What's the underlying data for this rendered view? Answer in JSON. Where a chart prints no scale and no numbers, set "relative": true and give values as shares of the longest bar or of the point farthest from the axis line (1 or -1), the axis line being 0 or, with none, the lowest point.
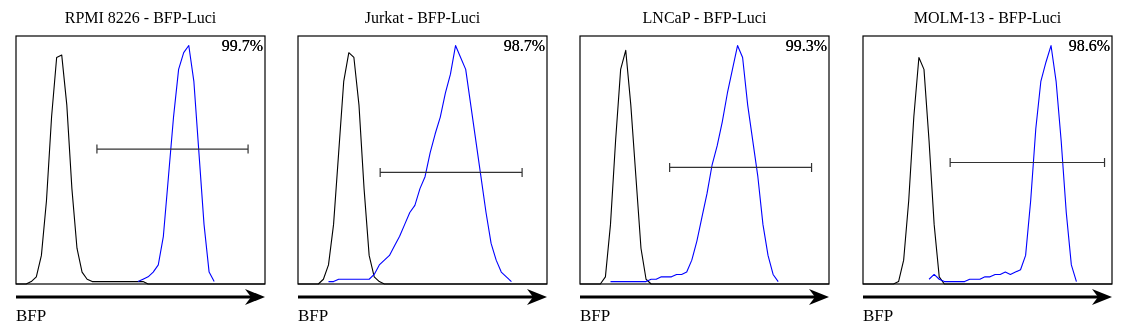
{
  "chart_data": [
    {
      "type": "line",
      "relative": true,
      "title": "RPMI 8226 - BFP-Luci",
      "xlabel": "BFP",
      "annotations": [
        "99.7%"
      ],
      "categories": [
        null,
        null,
        null,
        null,
        null,
        null,
        null,
        null,
        null,
        null,
        null,
        null,
        null,
        null,
        null,
        null,
        null,
        null,
        null,
        null,
        null,
        null,
        null,
        null,
        null,
        null,
        null,
        null,
        null,
        null,
        null,
        null,
        null,
        null,
        null,
        null,
        null,
        null,
        null,
        null,
        null,
        null,
        null,
        null,
        null,
        null,
        null,
        null,
        null,
        null
      ],
      "series": [
        {
          "color": "#000000",
          "values": [
            0,
            0,
            0,
            0.01,
            0.03,
            0.12,
            0.35,
            0.7,
            0.95,
            0.96,
            0.75,
            0.4,
            0.15,
            0.05,
            0.02,
            0.01,
            0.01,
            0.01,
            0.01,
            0.01,
            0.01,
            0.01,
            0.01,
            0.01,
            0.01,
            0.01,
            0,
            0,
            0,
            0,
            0,
            0,
            0,
            0,
            0,
            0,
            0,
            0,
            0,
            0,
            0,
            0,
            0,
            0,
            0,
            0,
            0,
            0,
            0,
            0
          ]
        },
        {
          "color": "#0000ff",
          "values": [
            null,
            null,
            null,
            null,
            null,
            null,
            null,
            null,
            null,
            null,
            null,
            null,
            null,
            null,
            null,
            null,
            null,
            null,
            null,
            null,
            null,
            null,
            null,
            null,
            0.01,
            0.02,
            0.03,
            0.05,
            0.08,
            0.2,
            0.45,
            0.7,
            0.9,
            0.97,
            1,
            0.85,
            0.55,
            0.25,
            0.05,
            0.01,
            null,
            null,
            null,
            null,
            null,
            null,
            null,
            null,
            null,
            null
          ]
        }
      ]
    },
    {
      "type": "line",
      "relative": true,
      "title": "Jurkat - BFP-Luci",
      "xlabel": "BFP",
      "annotations": [
        "98.7%"
      ],
      "categories": [
        null,
        null,
        null,
        null,
        null,
        null,
        null,
        null,
        null,
        null,
        null,
        null,
        null,
        null,
        null,
        null,
        null,
        null,
        null,
        null,
        null,
        null,
        null,
        null,
        null,
        null,
        null,
        null,
        null,
        null,
        null,
        null,
        null,
        null,
        null,
        null,
        null,
        null,
        null,
        null,
        null,
        null,
        null,
        null,
        null,
        null,
        null,
        null,
        null,
        null
      ],
      "series": [
        {
          "color": "#000000",
          "values": [
            0,
            0,
            0,
            0,
            0,
            0.02,
            0.08,
            0.25,
            0.55,
            0.85,
            0.97,
            0.95,
            0.75,
            0.4,
            0.12,
            0.03,
            0.01,
            0,
            0,
            0,
            0,
            0,
            0,
            0,
            0,
            0,
            0,
            0,
            0,
            0,
            0,
            0,
            0,
            0,
            0,
            0,
            0,
            0,
            0,
            0,
            0,
            0,
            0,
            0,
            0,
            0,
            0,
            0,
            0,
            0
          ]
        },
        {
          "color": "#0000ff",
          "values": [
            null,
            null,
            null,
            null,
            null,
            null,
            0.01,
            0.01,
            0.02,
            0.02,
            0.02,
            0.02,
            0.02,
            0.02,
            0.02,
            0.04,
            0.08,
            0.1,
            0.12,
            0.16,
            0.2,
            0.25,
            0.3,
            0.33,
            0.4,
            0.45,
            0.55,
            0.63,
            0.7,
            0.8,
            0.88,
            1,
            0.95,
            0.9,
            0.75,
            0.6,
            0.45,
            0.3,
            0.17,
            0.1,
            0.05,
            0.03,
            0.01,
            null,
            null,
            null,
            null,
            null,
            null,
            null
          ]
        }
      ]
    },
    {
      "type": "line",
      "relative": true,
      "title": "LNCaP - BFP-Luci",
      "xlabel": "BFP",
      "annotations": [
        "99.3%"
      ],
      "categories": [
        null,
        null,
        null,
        null,
        null,
        null,
        null,
        null,
        null,
        null,
        null,
        null,
        null,
        null,
        null,
        null,
        null,
        null,
        null,
        null,
        null,
        null,
        null,
        null,
        null,
        null,
        null,
        null,
        null,
        null,
        null,
        null,
        null,
        null,
        null,
        null,
        null,
        null,
        null,
        null,
        null,
        null,
        null,
        null,
        null,
        null,
        null,
        null,
        null,
        null
      ],
      "series": [
        {
          "color": "#000000",
          "values": [
            0,
            0,
            0,
            0,
            0,
            0.03,
            0.25,
            0.6,
            0.9,
            0.98,
            0.75,
            0.45,
            0.15,
            0.02,
            0,
            0,
            0,
            0,
            0,
            0,
            0,
            0,
            0,
            0,
            0,
            0,
            0,
            0,
            0,
            0,
            0,
            0,
            0,
            0,
            0,
            0,
            0,
            0,
            0,
            0,
            0,
            0,
            0,
            0,
            0,
            0,
            0,
            0,
            0,
            0
          ]
        },
        {
          "color": "#0000ff",
          "values": [
            null,
            null,
            null,
            null,
            null,
            null,
            0.01,
            0.01,
            0.01,
            0.01,
            0.01,
            0.01,
            0.01,
            0.01,
            0.02,
            0.02,
            0.03,
            0.03,
            0.03,
            0.04,
            0.04,
            0.05,
            0.1,
            0.18,
            0.28,
            0.38,
            0.5,
            0.58,
            0.68,
            0.8,
            0.9,
            1,
            0.95,
            0.75,
            0.6,
            0.45,
            0.25,
            0.12,
            0.04,
            0.01,
            null,
            null,
            null,
            null,
            null,
            null,
            null,
            null,
            null,
            null
          ]
        }
      ]
    },
    {
      "type": "line",
      "relative": true,
      "title": "MOLM-13 - BFP-Luci",
      "xlabel": "BFP",
      "annotations": [
        "98.6%"
      ],
      "categories": [
        null,
        null,
        null,
        null,
        null,
        null,
        null,
        null,
        null,
        null,
        null,
        null,
        null,
        null,
        null,
        null,
        null,
        null,
        null,
        null,
        null,
        null,
        null,
        null,
        null,
        null,
        null,
        null,
        null,
        null,
        null,
        null,
        null,
        null,
        null,
        null,
        null,
        null,
        null,
        null,
        null,
        null,
        null,
        null,
        null,
        null,
        null,
        null,
        null,
        null
      ],
      "series": [
        {
          "color": "#000000",
          "values": [
            0,
            0,
            0,
            0,
            0,
            0,
            0,
            0.01,
            0.1,
            0.35,
            0.7,
            0.95,
            0.9,
            0.6,
            0.25,
            0.03,
            0,
            0,
            0,
            0,
            0,
            0,
            0,
            0,
            0,
            0,
            0,
            0,
            0,
            0,
            0,
            0,
            0,
            0,
            0,
            0,
            0,
            0,
            0,
            0,
            0,
            0,
            0,
            0,
            0,
            0,
            0,
            0,
            0,
            0
          ]
        },
        {
          "color": "#0000ff",
          "values": [
            null,
            null,
            null,
            null,
            null,
            null,
            null,
            null,
            null,
            null,
            null,
            null,
            null,
            0.02,
            0.04,
            0.02,
            0.01,
            0.01,
            0.01,
            0.01,
            0.01,
            0.02,
            0.02,
            0.02,
            0.03,
            0.03,
            0.04,
            0.04,
            0.05,
            0.04,
            0.05,
            0.06,
            0.12,
            0.35,
            0.65,
            0.85,
            0.93,
            1,
            0.85,
            0.6,
            0.3,
            0.08,
            0.01,
            null,
            null,
            null,
            null,
            null,
            null,
            null
          ]
        }
      ]
    }
  ]
}
